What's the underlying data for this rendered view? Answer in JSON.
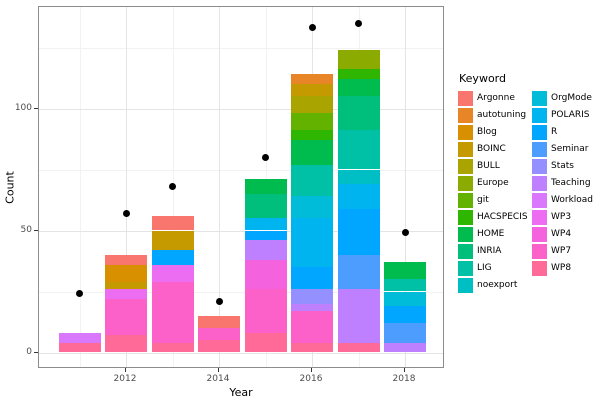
{
  "chart_data": {
    "type": "bar",
    "stacked": true,
    "title": "",
    "xlabel": "Year",
    "ylabel": "Count",
    "legend_title": "Keyword",
    "legend_position": "right",
    "grid": "major+minor",
    "ylim": [
      0,
      141
    ],
    "y_ticks": [
      0,
      50,
      100
    ],
    "y_minor": [
      25,
      75,
      125
    ],
    "x_ticks": [
      2012,
      2014,
      2016,
      2018
    ],
    "x_minor": [
      2011,
      2013,
      2015,
      2017
    ],
    "keywords": [
      {
        "label": "Argonne",
        "color": "#F8766D"
      },
      {
        "label": "autotuning",
        "color": "#E88526"
      },
      {
        "label": "Blog",
        "color": "#D89000"
      },
      {
        "label": "BOINC",
        "color": "#C49A00"
      },
      {
        "label": "BULL",
        "color": "#A9A400"
      },
      {
        "label": "Europe",
        "color": "#8CAB00"
      },
      {
        "label": "git",
        "color": "#64B200"
      },
      {
        "label": "HACSPECIS",
        "color": "#2FB600"
      },
      {
        "label": "HOME",
        "color": "#00BB4E"
      },
      {
        "label": "INRIA",
        "color": "#00BF7D"
      },
      {
        "label": "LIG",
        "color": "#00C1A5"
      },
      {
        "label": "noexport",
        "color": "#00BFC4"
      },
      {
        "label": "OrgMode",
        "color": "#00BCD8"
      },
      {
        "label": "POLARIS",
        "color": "#00B4F0"
      },
      {
        "label": "R",
        "color": "#00A6FF"
      },
      {
        "label": "Seminar",
        "color": "#4D9DFF"
      },
      {
        "label": "Stats",
        "color": "#9590FF"
      },
      {
        "label": "Teaching",
        "color": "#BF80FF"
      },
      {
        "label": "Workload",
        "color": "#D978FC"
      },
      {
        "label": "WP3",
        "color": "#EC6DF1"
      },
      {
        "label": "WP4",
        "color": "#F562DE"
      },
      {
        "label": "WP7",
        "color": "#FC61C9"
      },
      {
        "label": "WP8",
        "color": "#FF6A99"
      }
    ],
    "bars": [
      {
        "year": 2011,
        "segments": [
          {
            "keyword": "Workload",
            "value": 4
          },
          {
            "keyword": "WP8",
            "value": 4
          }
        ]
      },
      {
        "year": 2012,
        "segments": [
          {
            "keyword": "Argonne",
            "value": 4
          },
          {
            "keyword": "Blog",
            "value": 7
          },
          {
            "keyword": "BOINC",
            "value": 3
          },
          {
            "keyword": "WP3",
            "value": 4
          },
          {
            "keyword": "WP7",
            "value": 15
          },
          {
            "keyword": "WP8",
            "value": 7
          }
        ]
      },
      {
        "year": 2013,
        "segments": [
          {
            "keyword": "Argonne",
            "value": 6
          },
          {
            "keyword": "BOINC",
            "value": 8
          },
          {
            "keyword": "R",
            "value": 6
          },
          {
            "keyword": "WP3",
            "value": 7
          },
          {
            "keyword": "WP7",
            "value": 25
          },
          {
            "keyword": "WP8",
            "value": 4
          }
        ]
      },
      {
        "year": 2014,
        "segments": [
          {
            "keyword": "Argonne",
            "value": 5
          },
          {
            "keyword": "WP7",
            "value": 5
          },
          {
            "keyword": "WP8",
            "value": 5
          }
        ]
      },
      {
        "year": 2015,
        "segments": [
          {
            "keyword": "HOME",
            "value": 6
          },
          {
            "keyword": "INRIA",
            "value": 10
          },
          {
            "keyword": "POLARIS",
            "value": 5
          },
          {
            "keyword": "R",
            "value": 4
          },
          {
            "keyword": "Teaching",
            "value": 8
          },
          {
            "keyword": "WP4",
            "value": 12
          },
          {
            "keyword": "WP7",
            "value": 18
          },
          {
            "keyword": "WP8",
            "value": 8
          }
        ]
      },
      {
        "year": 2016,
        "segments": [
          {
            "keyword": "autotuning",
            "value": 4
          },
          {
            "keyword": "BOINC",
            "value": 5
          },
          {
            "keyword": "BULL",
            "value": 7
          },
          {
            "keyword": "git",
            "value": 7
          },
          {
            "keyword": "HACSPECIS",
            "value": 4
          },
          {
            "keyword": "HOME",
            "value": 10
          },
          {
            "keyword": "LIG",
            "value": 13
          },
          {
            "keyword": "OrgMode",
            "value": 9
          },
          {
            "keyword": "POLARIS",
            "value": 20
          },
          {
            "keyword": "R",
            "value": 9
          },
          {
            "keyword": "Stats",
            "value": 6
          },
          {
            "keyword": "Teaching",
            "value": 3
          },
          {
            "keyword": "WP7",
            "value": 13
          },
          {
            "keyword": "WP8",
            "value": 4
          }
        ]
      },
      {
        "year": 2017,
        "segments": [
          {
            "keyword": "Europe",
            "value": 8
          },
          {
            "keyword": "HACSPECIS",
            "value": 4
          },
          {
            "keyword": "HOME",
            "value": 7
          },
          {
            "keyword": "INRIA",
            "value": 14
          },
          {
            "keyword": "LIG",
            "value": 16
          },
          {
            "keyword": "noexport",
            "value": 6
          },
          {
            "keyword": "POLARIS",
            "value": 10
          },
          {
            "keyword": "R",
            "value": 19
          },
          {
            "keyword": "Seminar",
            "value": 14
          },
          {
            "keyword": "Teaching",
            "value": 22
          },
          {
            "keyword": "WP8",
            "value": 4
          }
        ]
      },
      {
        "year": 2018,
        "segments": [
          {
            "keyword": "HOME",
            "value": 7
          },
          {
            "keyword": "LIG",
            "value": 5
          },
          {
            "keyword": "OrgMode",
            "value": 6
          },
          {
            "keyword": "R",
            "value": 7
          },
          {
            "keyword": "Seminar",
            "value": 8
          },
          {
            "keyword": "Teaching",
            "value": 4
          }
        ]
      }
    ],
    "dots": [
      {
        "year": 2011,
        "value": 24
      },
      {
        "year": 2012,
        "value": 57
      },
      {
        "year": 2013,
        "value": 68
      },
      {
        "year": 2014,
        "value": 21
      },
      {
        "year": 2015,
        "value": 80
      },
      {
        "year": 2016,
        "value": 133
      },
      {
        "year": 2017,
        "value": 135
      },
      {
        "year": 2018,
        "value": 49
      }
    ]
  }
}
